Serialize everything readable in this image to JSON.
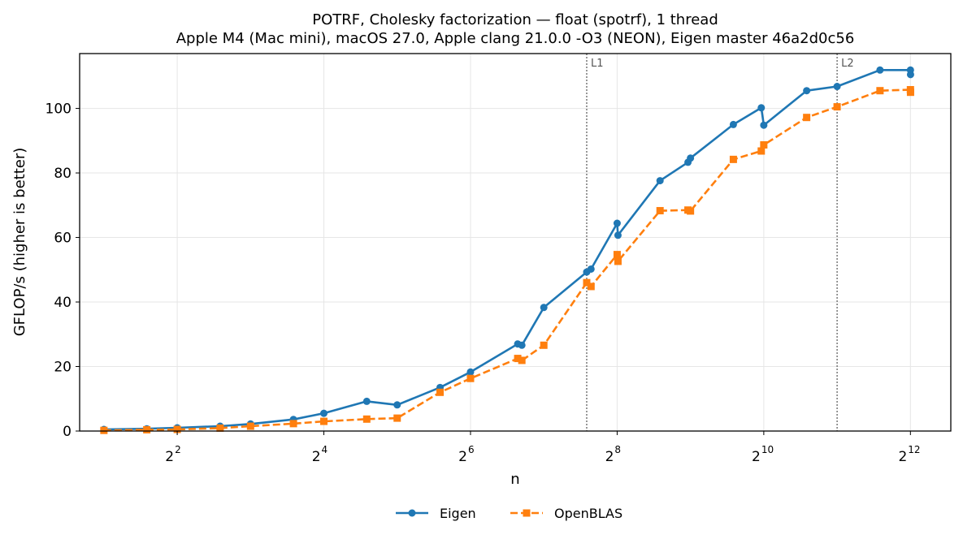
{
  "chart_data": {
    "type": "line",
    "title": "POTRF, Cholesky factorization — float (spotrf), 1 thread",
    "subtitle": "Apple M4 (Mac mini), macOS 27.0, Apple clang 21.0.0 -O3 (NEON), Eigen master 46a2d0c56",
    "xlabel": "n",
    "ylabel": "GFLOP/s (higher is better)",
    "x_scale": "log2",
    "xlim": [
      1.59,
      6000
    ],
    "ylim": [
      0,
      117
    ],
    "x_ticks": [
      {
        "value": 4,
        "base": "2",
        "exp": "2"
      },
      {
        "value": 16,
        "base": "2",
        "exp": "4"
      },
      {
        "value": 64,
        "base": "2",
        "exp": "6"
      },
      {
        "value": 256,
        "base": "2",
        "exp": "8"
      },
      {
        "value": 1024,
        "base": "2",
        "exp": "10"
      },
      {
        "value": 4096,
        "base": "2",
        "exp": "12"
      }
    ],
    "y_ticks": [
      0,
      20,
      40,
      60,
      80,
      100
    ],
    "grid": true,
    "legend_position": "bottom-center",
    "series": [
      {
        "name": "Eigen",
        "color": "#1f77b4",
        "marker": "circle",
        "line_style": "solid",
        "x": [
          2,
          3,
          4,
          6,
          8,
          12,
          16,
          24,
          32,
          48,
          64,
          100,
          104,
          128,
          192,
          200,
          256,
          258,
          384,
          500,
          512,
          768,
          1000,
          1024,
          1536,
          2048,
          3072,
          4096,
          4100
        ],
        "y": [
          0.5,
          0.7,
          1.0,
          1.5,
          2.2,
          3.6,
          5.5,
          9.2,
          8.1,
          13.5,
          18.3,
          27.0,
          26.6,
          38.3,
          49.3,
          50.2,
          64.4,
          60.7,
          77.6,
          83.3,
          84.6,
          95.0,
          100.2,
          94.8,
          105.5,
          106.8,
          111.9,
          111.9,
          110.5
        ]
      },
      {
        "name": "OpenBLAS",
        "color": "#ff7f0e",
        "marker": "square",
        "line_style": "dashed",
        "x": [
          2,
          3,
          4,
          6,
          8,
          12,
          16,
          24,
          32,
          48,
          64,
          100,
          104,
          128,
          192,
          200,
          256,
          258,
          384,
          500,
          512,
          768,
          1000,
          1024,
          1536,
          2048,
          3072,
          4096,
          4100
        ],
        "y": [
          0.2,
          0.4,
          0.5,
          0.9,
          1.5,
          2.3,
          3.0,
          3.7,
          4.0,
          12.0,
          16.3,
          22.5,
          21.9,
          26.6,
          46.0,
          44.8,
          54.7,
          52.6,
          68.3,
          68.5,
          68.2,
          84.2,
          86.8,
          88.7,
          97.2,
          100.5,
          105.5,
          105.8,
          105.0
        ]
      }
    ],
    "vlines": [
      {
        "x": 192,
        "label": "L1"
      },
      {
        "x": 2048,
        "label": "L2"
      }
    ]
  }
}
